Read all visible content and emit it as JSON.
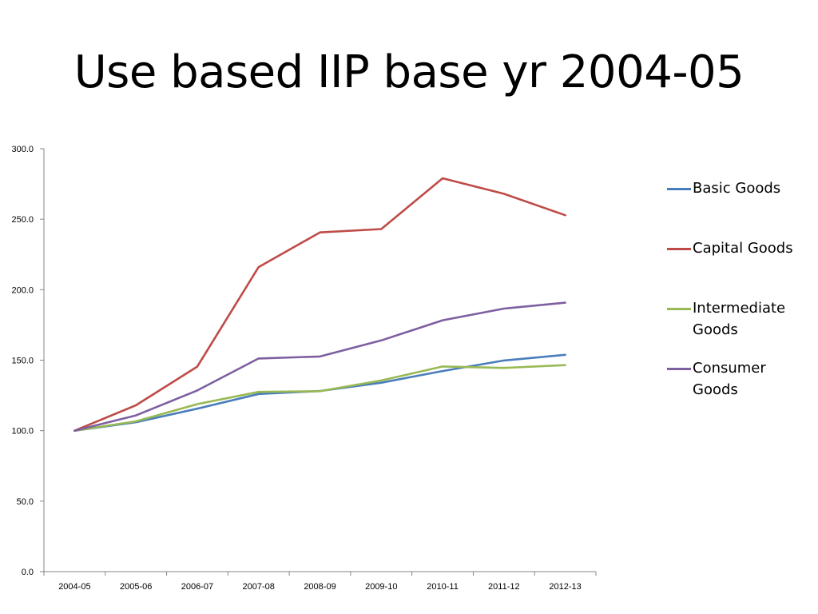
{
  "slide": {
    "title": "Use based IIP base yr 2004-05"
  },
  "chart_data": {
    "type": "line",
    "title": "",
    "xlabel": "",
    "ylabel": "",
    "categories": [
      "2004-05",
      "2005-06",
      "2006-07",
      "2007-08",
      "2008-09",
      "2009-10",
      "2010-11",
      "2011-12",
      "2012-13"
    ],
    "ylim": [
      0,
      300
    ],
    "yticks": [
      "0.0",
      "50.0",
      "100.0",
      "150.0",
      "200.0",
      "250.0",
      "300.0"
    ],
    "grid": false,
    "legend_position": "right",
    "series": [
      {
        "name": "Basic Goods",
        "color": "#4a7ebb",
        "values": [
          100.0,
          106.0,
          115.6,
          126.0,
          128.1,
          134.0,
          142.3,
          149.8,
          153.8
        ]
      },
      {
        "name": "Capital Goods",
        "color": "#be4b48",
        "values": [
          100.0,
          118.0,
          145.4,
          216.0,
          240.6,
          243.0,
          279.0,
          268.0,
          252.8
        ]
      },
      {
        "name": "Intermediate Goods",
        "color": "#98b954",
        "values": [
          100.0,
          106.6,
          118.8,
          127.5,
          128.0,
          135.6,
          145.5,
          144.5,
          146.5
        ]
      },
      {
        "name": "Consumer Goods",
        "color": "#7d5fa0",
        "values": [
          100.0,
          110.8,
          128.5,
          151.2,
          152.6,
          164.0,
          178.3,
          186.6,
          190.8
        ]
      }
    ]
  }
}
